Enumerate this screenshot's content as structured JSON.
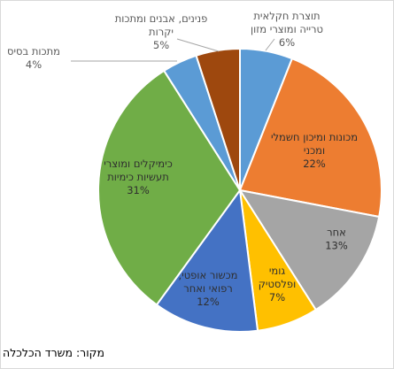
{
  "chart_data": {
    "type": "pie",
    "title": "",
    "direction": "clockwise",
    "start": "top",
    "slices": [
      {
        "label": [
          "תוצרת חקלאית",
          "טרייה ומוצרי מזון"
        ],
        "value": 6,
        "display": "6%",
        "color": "#5b9bd5",
        "label_placement": "outside"
      },
      {
        "label": [
          "מכונות ומיכון חשמלי",
          "ומכני"
        ],
        "value": 22,
        "display": "22%",
        "color": "#ed7d31",
        "label_placement": "inside"
      },
      {
        "label": [
          "אחר"
        ],
        "value": 13,
        "display": "13%",
        "color": "#a5a5a5",
        "label_placement": "inside"
      },
      {
        "label": [
          "גומי",
          "ופלסטיק"
        ],
        "value": 7,
        "display": "7%",
        "color": "#ffc000",
        "label_placement": "inside"
      },
      {
        "label": [
          "מכשור אופטי,",
          "רפואי ואחר"
        ],
        "value": 12,
        "display": "12%",
        "color": "#4472c4",
        "label_placement": "inside"
      },
      {
        "label": [
          "כימיקלים ומוצרי",
          "תעשיות כימיות"
        ],
        "value": 31,
        "display": "31%",
        "color": "#70ad47",
        "label_placement": "inside"
      },
      {
        "label": [
          "מתכות בסיס"
        ],
        "value": 4,
        "display": "4%",
        "color": "#5b9bd5",
        "label_placement": "outside"
      },
      {
        "label": [
          "פנינים, אבנים ומתכות",
          "יקרות"
        ],
        "value": 5,
        "display": "5%",
        "color": "#9e480e",
        "label_placement": "outside"
      }
    ]
  },
  "source_text": "מקור: משרד הכלכלה"
}
